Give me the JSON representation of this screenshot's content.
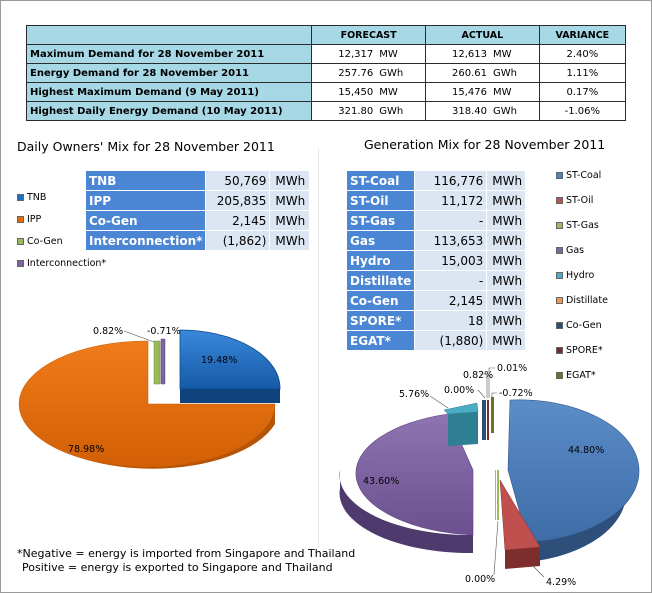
{
  "summary": {
    "headers": [
      "",
      "FORECAST",
      "ACTUAL",
      "VARIANCE"
    ],
    "rows": [
      {
        "label": "Maximum Demand for 28 November 2011",
        "forecast": "12,317",
        "forecast_unit": "MW",
        "actual": "12,613",
        "actual_unit": "MW",
        "variance": "2.40%"
      },
      {
        "label": "Energy Demand for 28 November 2011",
        "forecast": "257.76",
        "forecast_unit": "GWh",
        "actual": "260.61",
        "actual_unit": "GWh",
        "variance": "1.11%"
      },
      {
        "label": "Highest Maximum Demand (9 May 2011)",
        "forecast": "15,450",
        "forecast_unit": "MW",
        "actual": "15,476",
        "actual_unit": "MW",
        "variance": "0.17%"
      },
      {
        "label": "Highest Daily Energy Demand (10 May 2011)",
        "forecast": "321.80",
        "forecast_unit": "GWh",
        "actual": "318.40",
        "actual_unit": "GWh",
        "variance": "-1.06%"
      }
    ]
  },
  "owners": {
    "title": "Daily Owners' Mix for 28 November 2011",
    "rows": [
      {
        "name": "TNB",
        "value": "50,769",
        "unit": "MWh"
      },
      {
        "name": "IPP",
        "value": "205,835",
        "unit": "MWh"
      },
      {
        "name": "Co-Gen",
        "value": "2,145",
        "unit": "MWh"
      },
      {
        "name": "Interconnection*",
        "value": "(1,862)",
        "unit": "MWh"
      }
    ],
    "legend": [
      "TNB",
      "IPP",
      "Co-Gen",
      "Interconnection*"
    ]
  },
  "generation": {
    "title": "Generation Mix for 28 November 2011",
    "rows": [
      {
        "name": "ST-Coal",
        "value": "116,776",
        "unit": "MWh"
      },
      {
        "name": "ST-Oil",
        "value": "11,172",
        "unit": "MWh"
      },
      {
        "name": "ST-Gas",
        "value": "-",
        "unit": "MWh"
      },
      {
        "name": "Gas",
        "value": "113,653",
        "unit": "MWh"
      },
      {
        "name": "Hydro",
        "value": "15,003",
        "unit": "MWh"
      },
      {
        "name": "Distillate",
        "value": "-",
        "unit": "MWh"
      },
      {
        "name": "Co-Gen",
        "value": "2,145",
        "unit": "MWh"
      },
      {
        "name": "SPORE*",
        "value": "18",
        "unit": "MWh"
      },
      {
        "name": "EGAT*",
        "value": "(1,880)",
        "unit": "MWh"
      }
    ],
    "legend": [
      "ST-Coal",
      "ST-Oil",
      "ST-Gas",
      "Gas",
      "Hydro",
      "Distillate",
      "Co-Gen",
      "SPORE*",
      "EGAT*"
    ]
  },
  "notes": {
    "line1": "*Negative = energy is imported from Singapore and Thailand",
    "line2": "Positive = energy is exported to Singapore and Thailand"
  },
  "colors": {
    "TNB": "#1f6fc4",
    "IPP": "#e36c0a",
    "Co-Gen": "#9bbb59",
    "Interconnection": "#8064a2",
    "ST-Coal": "#4f81bd",
    "ST-Oil": "#c0504d",
    "ST-Gas": "#9bbb59",
    "Gas": "#8064a2",
    "Hydro": "#4bacc6",
    "Distillate": "#f79646",
    "Co-Gen-gen": "#2c4d75",
    "SPORE": "#772c2a",
    "EGAT": "#5f7530"
  },
  "chart_data": [
    {
      "type": "pie",
      "title": "Daily Owners' Mix for 28 November 2011",
      "categories": [
        "TNB",
        "IPP",
        "Co-Gen",
        "Interconnection*"
      ],
      "values": [
        19.48,
        78.98,
        0.82,
        -0.71
      ],
      "labels": [
        "19.48%",
        "78.98%",
        "0.82%",
        "-0.71%"
      ]
    },
    {
      "type": "pie",
      "title": "Generation Mix for 28 November 2011",
      "categories": [
        "ST-Coal",
        "ST-Oil",
        "ST-Gas",
        "Gas",
        "Hydro",
        "Distillate",
        "Co-Gen",
        "SPORE*",
        "EGAT*"
      ],
      "values": [
        44.8,
        4.29,
        0.0,
        43.6,
        5.76,
        0.0,
        0.82,
        0.01,
        -0.72
      ],
      "labels": [
        "44.80%",
        "4.29%",
        "0.00%",
        "43.60%",
        "5.76%",
        "0.00%",
        "0.82%",
        "0.01%",
        "-0.72%"
      ]
    }
  ]
}
